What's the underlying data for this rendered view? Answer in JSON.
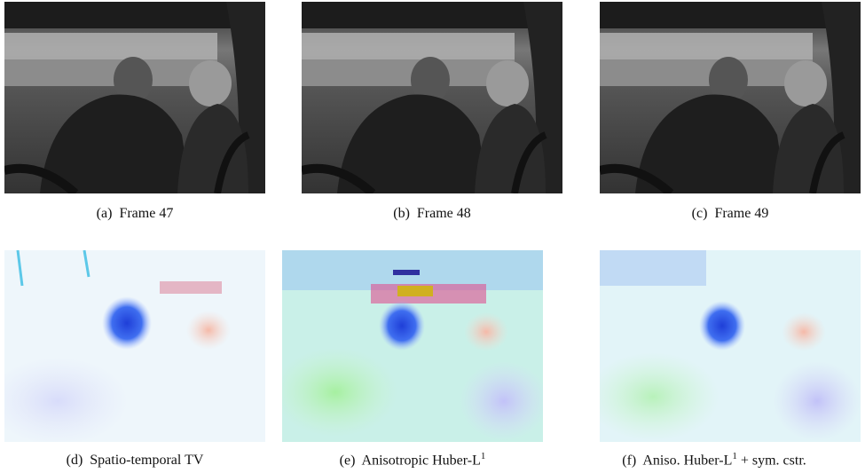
{
  "figure": {
    "panels": [
      {
        "label": "(a)",
        "caption": "Frame 47"
      },
      {
        "label": "(b)",
        "caption": "Frame 48"
      },
      {
        "label": "(c)",
        "caption": "Frame 49"
      },
      {
        "label": "(d)",
        "caption": "Spatio-temporal TV"
      },
      {
        "label": "(e)",
        "caption": "Anisotropic Huber-L",
        "sup": "1"
      },
      {
        "label": "(f)",
        "caption": "Aniso. Huber-L",
        "sup": "1",
        "caption_tail": "+ sym. cstr."
      }
    ]
  }
}
